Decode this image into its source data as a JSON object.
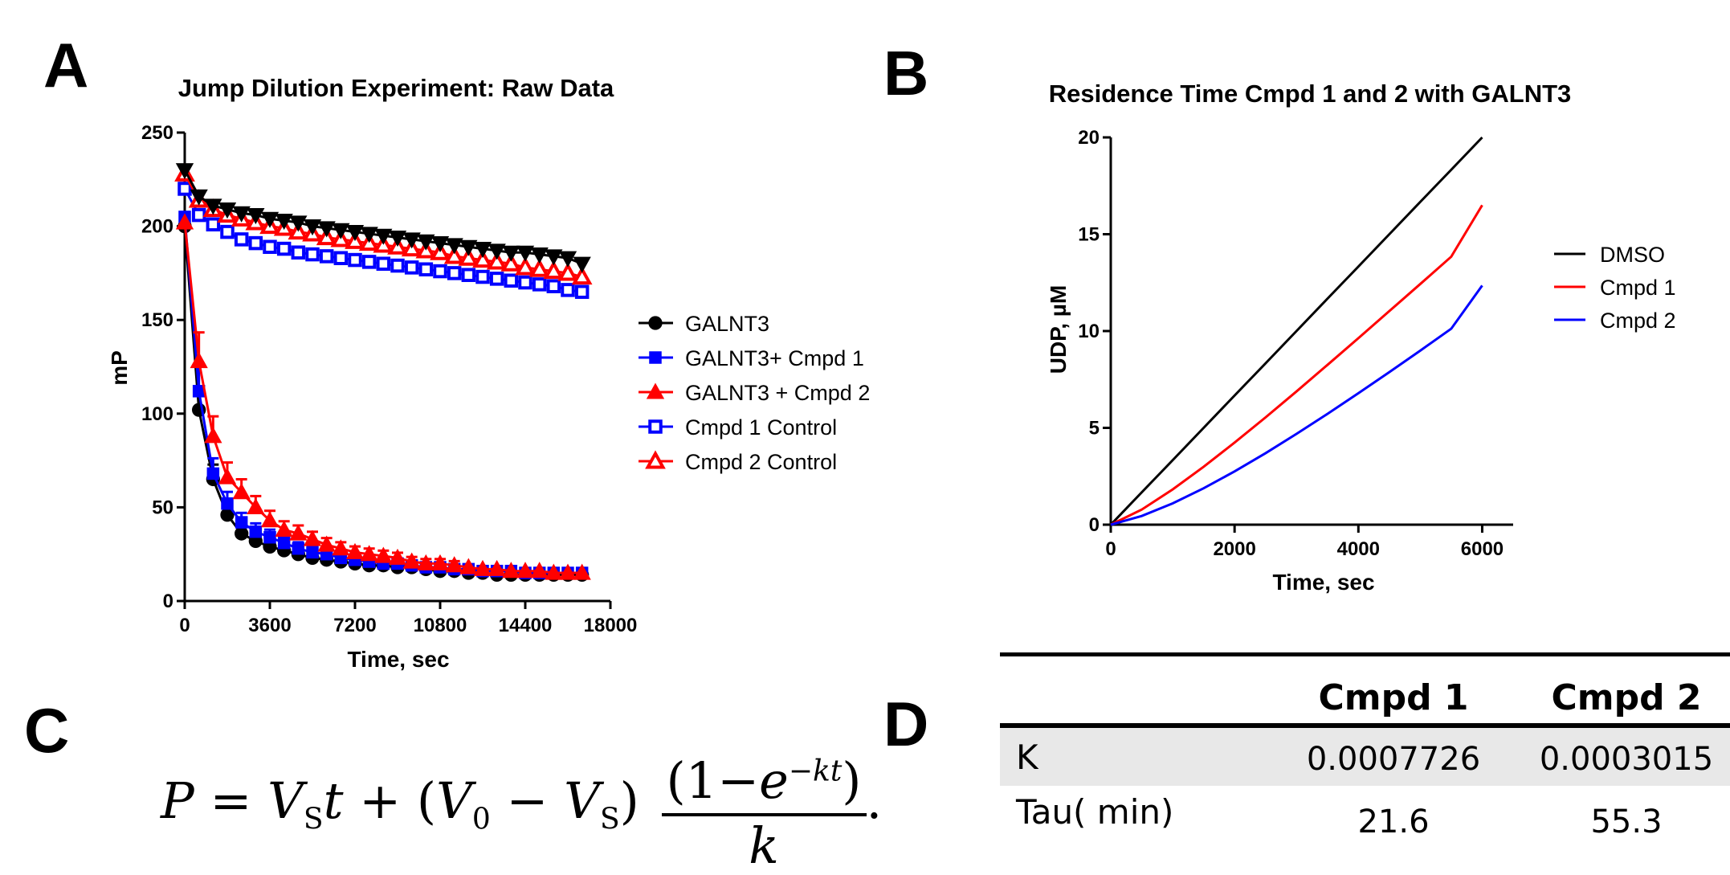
{
  "panels": {
    "A": "A",
    "B": "B",
    "C": "C",
    "D": "D"
  },
  "chart_data": [
    {
      "type": "line",
      "title": "Jump Dilution Experiment: Raw Data",
      "xlabel": "Time, sec",
      "ylabel": "mP",
      "xlim": [
        0,
        18000
      ],
      "ylim": [
        0,
        250
      ],
      "xticks": [
        "0",
        "3600",
        "7200",
        "10800",
        "14400",
        "18000"
      ],
      "yticks": [
        "0",
        "50",
        "100",
        "150",
        "200",
        "250"
      ],
      "legend_position": "right",
      "x": [
        0,
        600,
        1200,
        1800,
        2400,
        3000,
        3600,
        4200,
        4800,
        5400,
        6000,
        6600,
        7200,
        7800,
        8400,
        9000,
        9600,
        10200,
        10800,
        11400,
        12000,
        12600,
        13200,
        13800,
        14400,
        15000,
        15600,
        16200,
        16800
      ],
      "series": [
        {
          "name": "GALNT3",
          "color": "#000000",
          "marker": "circle",
          "filled": true,
          "values": [
            200,
            102,
            65,
            46,
            36,
            32,
            29,
            27,
            25,
            23,
            22,
            21,
            20,
            19,
            19,
            18,
            18,
            17,
            16,
            16,
            15,
            15,
            14,
            14,
            14,
            14,
            14,
            14,
            14
          ]
        },
        {
          "name": "GALNT3+ Cmpd 1",
          "color": "#0000ff",
          "marker": "square",
          "filled": true,
          "values": [
            205,
            112,
            68,
            52,
            42,
            37,
            34,
            31,
            28,
            26,
            25,
            23,
            22,
            21,
            20,
            20,
            19,
            18,
            18,
            17,
            17,
            16,
            16,
            16,
            15,
            15,
            15,
            15,
            15
          ]
        },
        {
          "name": "GALNT3 + Cmpd 2",
          "color": "#ff0000",
          "marker": "triangle-up",
          "filled": true,
          "values": [
            202,
            128,
            88,
            66,
            58,
            50,
            43,
            38,
            36,
            33,
            30,
            28,
            26,
            25,
            24,
            23,
            21,
            20,
            20,
            19,
            18,
            17,
            17,
            16,
            16,
            16,
            15,
            15,
            15
          ]
        },
        {
          "name": "Cmpd 1 Control",
          "color": "#0000ff",
          "marker": "square",
          "filled": false,
          "values": [
            220,
            206,
            201,
            197,
            193,
            191,
            189,
            188,
            186,
            185,
            184,
            183,
            182,
            181,
            180,
            179,
            178,
            177,
            176,
            175,
            174,
            173,
            172,
            171,
            170,
            169,
            168,
            166,
            165
          ]
        },
        {
          "name": "Cmpd 2 Control",
          "color": "#ff0000",
          "marker": "triangle-up",
          "filled": false,
          "values": [
            228,
            214,
            209,
            206,
            204,
            202,
            200,
            199,
            197,
            196,
            194,
            193,
            192,
            191,
            190,
            189,
            188,
            187,
            186,
            184,
            183,
            182,
            181,
            180,
            178,
            177,
            176,
            175,
            173
          ]
        },
        {
          "name": "",
          "color": "#000000",
          "marker": "triangle-down",
          "filled": true,
          "legend": false,
          "values": [
            230,
            216,
            211,
            209,
            207,
            206,
            204,
            203,
            202,
            200,
            199,
            198,
            197,
            196,
            195,
            194,
            193,
            192,
            191,
            190,
            189,
            188,
            187,
            186,
            186,
            185,
            184,
            183,
            180
          ]
        }
      ]
    },
    {
      "type": "line",
      "title": "Residence Time Cmpd 1 and 2 with GALNT3",
      "xlabel": "Time, sec",
      "ylabel": "UDP, µM",
      "xlim": [
        0,
        6500
      ],
      "ylim": [
        0,
        20
      ],
      "xticks": [
        "0",
        "2000",
        "4000",
        "6000"
      ],
      "yticks": [
        "0",
        "5",
        "10",
        "15",
        "20"
      ],
      "legend_position": "right",
      "x": [
        0,
        500,
        1000,
        1500,
        2000,
        2500,
        3000,
        3500,
        4000,
        4500,
        5000,
        5500,
        6000
      ],
      "series": [
        {
          "name": "DMSO",
          "color": "#000000",
          "values": [
            0,
            1.67,
            3.33,
            5.0,
            6.67,
            8.33,
            10.0,
            11.67,
            13.33,
            15.0,
            16.67,
            18.33,
            20.0
          ]
        },
        {
          "name": "Cmpd 1",
          "color": "#ff0000",
          "values": [
            0,
            0.78,
            1.82,
            2.99,
            4.24,
            5.54,
            6.88,
            8.25,
            9.63,
            11.03,
            12.43,
            13.84,
            16.5
          ]
        },
        {
          "name": "Cmpd 2",
          "color": "#0000ff",
          "values": [
            0,
            0.45,
            1.1,
            1.88,
            2.75,
            3.69,
            4.69,
            5.72,
            6.79,
            7.88,
            8.99,
            10.12,
            12.35
          ]
        }
      ]
    }
  ],
  "formula": {
    "lhs": "P",
    "eq": "=",
    "term1": "V",
    "term1_sub": "S",
    "term1_var": "t",
    "plus": "+",
    "open": "(",
    "v0": "V",
    "v0_sub": "0",
    "minus": "−",
    "vs": "V",
    "vs_sub": "S",
    "close": ")",
    "num_open": "(",
    "num_one": "1",
    "num_minus": "−",
    "num_e": "e",
    "num_exp": "−kt",
    "num_close": ")",
    "den": "k",
    "end": "."
  },
  "table": {
    "headers": [
      "",
      "Cmpd 1",
      "Cmpd 2"
    ],
    "rows": [
      [
        "K",
        "0.0007726",
        "0.0003015"
      ],
      [
        "Tau( min)",
        "21.6",
        "55.3"
      ]
    ]
  }
}
